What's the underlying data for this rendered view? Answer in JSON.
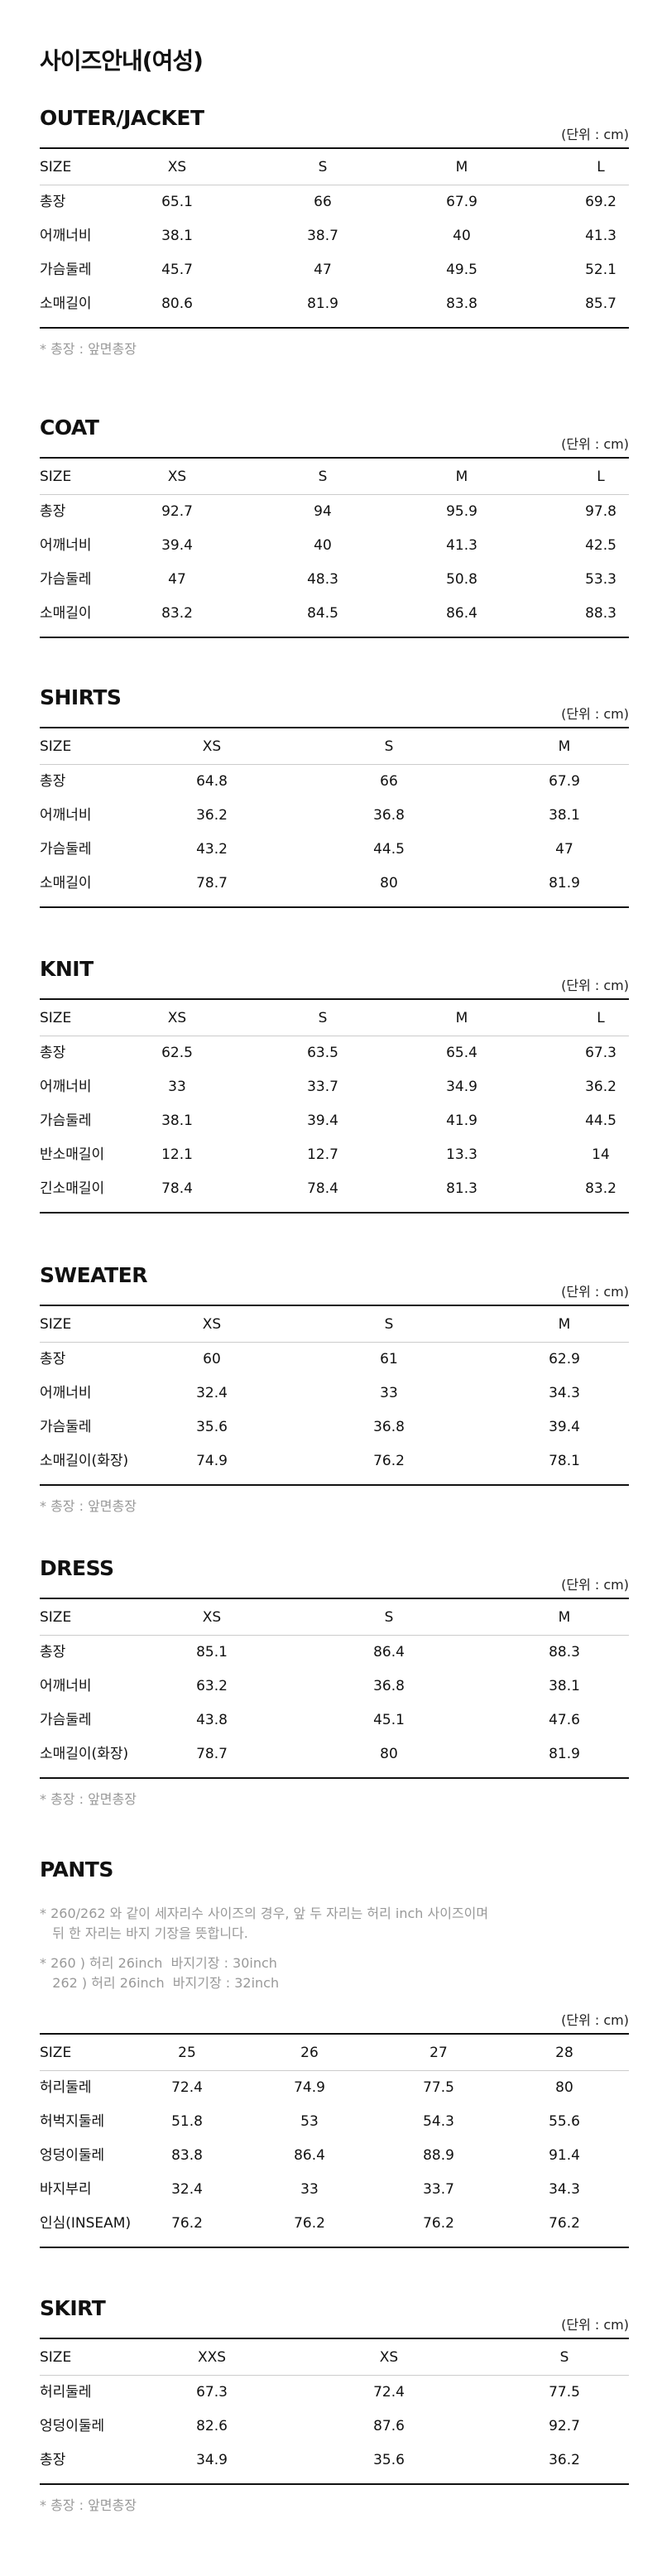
{
  "page_title": "사이즈안내(여성)",
  "sections": [
    {
      "id": "outer",
      "title": "OUTER/JACKET",
      "unit": "(단위 : cm)",
      "layout": "t4",
      "header": [
        "SIZE",
        "XS",
        "S",
        "M",
        "L"
      ],
      "rows": [
        {
          "label": "총장",
          "values": [
            "65.1",
            "66",
            "67.9",
            "69.2"
          ]
        },
        {
          "label": "어깨너비",
          "values": [
            "38.1",
            "38.7",
            "40",
            "41.3"
          ]
        },
        {
          "label": "가슴둘레",
          "values": [
            "45.7",
            "47",
            "49.5",
            "52.1"
          ]
        },
        {
          "label": "소매길이",
          "values": [
            "80.6",
            "81.9",
            "83.8",
            "85.7"
          ]
        }
      ],
      "note": "* 총장 : 앞면총장"
    },
    {
      "id": "coat",
      "title": "COAT",
      "unit": "(단위 : cm)",
      "layout": "t4",
      "header": [
        "SIZE",
        "XS",
        "S",
        "M",
        "L"
      ],
      "rows": [
        {
          "label": "총장",
          "values": [
            "92.7",
            "94",
            "95.9",
            "97.8"
          ]
        },
        {
          "label": "어깨너비",
          "values": [
            "39.4",
            "40",
            "41.3",
            "42.5"
          ]
        },
        {
          "label": "가슴둘레",
          "values": [
            "47",
            "48.3",
            "50.8",
            "53.3"
          ]
        },
        {
          "label": "소매길이",
          "values": [
            "83.2",
            "84.5",
            "86.4",
            "88.3"
          ]
        }
      ]
    },
    {
      "id": "shirts",
      "title": "SHIRTS",
      "unit": "(단위 : cm)",
      "layout": "t3",
      "header": [
        "SIZE",
        "XS",
        "S",
        "M"
      ],
      "rows": [
        {
          "label": "총장",
          "values": [
            "64.8",
            "66",
            "67.9"
          ]
        },
        {
          "label": "어깨너비",
          "values": [
            "36.2",
            "36.8",
            "38.1"
          ]
        },
        {
          "label": "가슴둘레",
          "values": [
            "43.2",
            "44.5",
            "47"
          ]
        },
        {
          "label": "소매길이",
          "values": [
            "78.7",
            "80",
            "81.9"
          ]
        }
      ]
    },
    {
      "id": "knit",
      "title": "KNIT",
      "unit": "(단위 : cm)",
      "layout": "t4",
      "header": [
        "SIZE",
        "XS",
        "S",
        "M",
        "L"
      ],
      "rows": [
        {
          "label": "총장",
          "values": [
            "62.5",
            "63.5",
            "65.4",
            "67.3"
          ]
        },
        {
          "label": "어깨너비",
          "values": [
            "33",
            "33.7",
            "34.9",
            "36.2"
          ]
        },
        {
          "label": "가슴둘레",
          "values": [
            "38.1",
            "39.4",
            "41.9",
            "44.5"
          ]
        },
        {
          "label": "반소매길이",
          "values": [
            "12.1",
            "12.7",
            "13.3",
            "14"
          ]
        },
        {
          "label": "긴소매길이",
          "values": [
            "78.4",
            "78.4",
            "81.3",
            "83.2"
          ]
        }
      ]
    },
    {
      "id": "sweater",
      "title": "SWEATER",
      "unit": "(단위 : cm)",
      "layout": "t3",
      "header": [
        "SIZE",
        "XS",
        "S",
        "M"
      ],
      "rows": [
        {
          "label": "총장",
          "values": [
            "60",
            "61",
            "62.9"
          ]
        },
        {
          "label": "어깨너비",
          "values": [
            "32.4",
            "33",
            "34.3"
          ]
        },
        {
          "label": "가슴둘레",
          "values": [
            "35.6",
            "36.8",
            "39.4"
          ]
        },
        {
          "label": "소매길이(화장)",
          "values": [
            "74.9",
            "76.2",
            "78.1"
          ]
        }
      ],
      "note": "* 총장 : 앞면총장"
    },
    {
      "id": "dress",
      "title": "DRESS",
      "unit": "(단위 : cm)",
      "layout": "t3",
      "header": [
        "SIZE",
        "XS",
        "S",
        "M"
      ],
      "rows": [
        {
          "label": "총장",
          "values": [
            "85.1",
            "86.4",
            "88.3"
          ]
        },
        {
          "label": "어깨너비",
          "values": [
            "63.2",
            "36.8",
            "38.1"
          ]
        },
        {
          "label": "가슴둘레",
          "values": [
            "43.8",
            "45.1",
            "47.6"
          ]
        },
        {
          "label": "소매길이(화장)",
          "values": [
            "78.7",
            "80",
            "81.9"
          ]
        }
      ],
      "note": "* 총장 : 앞면총장"
    },
    {
      "id": "pants",
      "title": "PANTS",
      "unit": "(단위 : cm)",
      "layout": "tp",
      "pre_notes": [
        "* 260/262 와 같이 세자리수 사이즈의 경우, 앞 두 자리는 허리 inch 사이즈이며\n   뒤 한 자리는 바지 기장을 뜻합니다.",
        "* 260 ) 허리 26inch  바지기장 : 30inch\n   262 ) 허리 26inch  바지기장 : 32inch"
      ],
      "header": [
        "SIZE",
        "25",
        "26",
        "27",
        "28"
      ],
      "rows": [
        {
          "label": "허리둘레",
          "values": [
            "72.4",
            "74.9",
            "77.5",
            "80"
          ]
        },
        {
          "label": "허벅지둘레",
          "values": [
            "51.8",
            "53",
            "54.3",
            "55.6"
          ]
        },
        {
          "label": "엉덩이둘레",
          "values": [
            "83.8",
            "86.4",
            "88.9",
            "91.4"
          ]
        },
        {
          "label": "바지부리",
          "values": [
            "32.4",
            "33",
            "33.7",
            "34.3"
          ]
        },
        {
          "label": "인심(INSEAM)",
          "values": [
            "76.2",
            "76.2",
            "76.2",
            "76.2"
          ]
        }
      ]
    },
    {
      "id": "skirt",
      "title": "SKIRT",
      "unit": "(단위 : cm)",
      "layout": "t3",
      "header": [
        "SIZE",
        "XXS",
        "XS",
        "S"
      ],
      "rows": [
        {
          "label": "허리둘레",
          "values": [
            "67.3",
            "72.4",
            "77.5"
          ]
        },
        {
          "label": "엉덩이둘레",
          "values": [
            "82.6",
            "87.6",
            "92.7"
          ]
        },
        {
          "label": "총장",
          "values": [
            "34.9",
            "35.6",
            "36.2"
          ]
        }
      ],
      "note": "* 총장 : 앞면총장"
    }
  ]
}
